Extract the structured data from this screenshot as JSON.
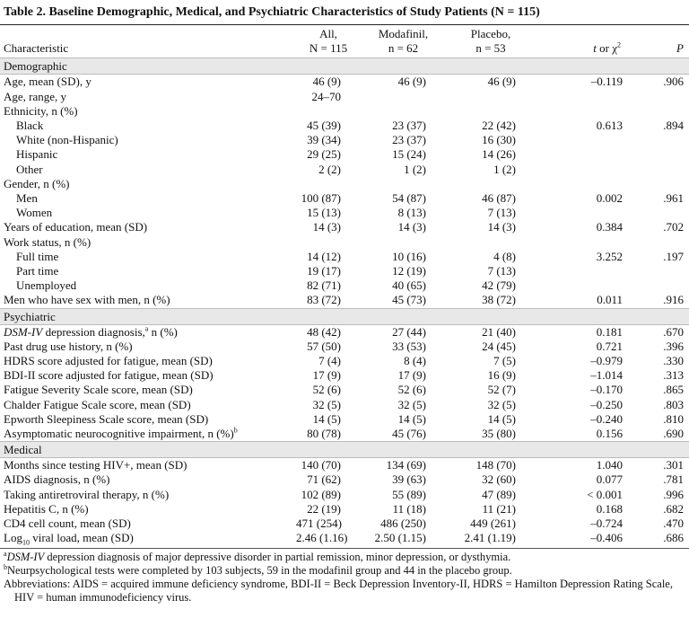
{
  "title": "Table 2. Baseline Demographic, Medical, and Psychiatric Characteristics of Study Patients (N = 115)",
  "columns": [
    [
      "Characteristic"
    ],
    [
      "All,",
      "N = 115"
    ],
    [
      "Modafinil,",
      "n = 62"
    ],
    [
      "Placebo,",
      "n = 53"
    ],
    [
      [
        {
          "text": "t",
          "style": "italic"
        },
        {
          "text": " or χ"
        },
        {
          "text": "2",
          "style": "sup"
        }
      ]
    ],
    [
      [
        {
          "text": "P",
          "style": "italic"
        }
      ]
    ]
  ],
  "sections": [
    {
      "name": "Demographic",
      "rows": [
        {
          "label": "Age, mean (SD), y",
          "cells": [
            "46 (9)",
            "46 (9)",
            "46 (9)",
            "–0.119",
            ".906"
          ]
        },
        {
          "label": "Age, range, y",
          "cells": [
            "24–70",
            null,
            null,
            null,
            null
          ]
        },
        {
          "label": "Ethnicity, n (%)",
          "subrows": [
            {
              "label": "Black",
              "cells": [
                "45 (39)",
                "23 (37)",
                "22 (42)",
                "0.613",
                ".894"
              ]
            },
            {
              "label": "White (non-Hispanic)",
              "cells": [
                "39 (34)",
                "23 (37)",
                "16 (30)",
                null,
                null
              ]
            },
            {
              "label": "Hispanic",
              "cells": [
                "29 (25)",
                "15 (24)",
                "14 (26)",
                null,
                null
              ]
            },
            {
              "label": "Other",
              "cells": [
                "2 (2)",
                "1 (2)",
                "1 (2)",
                null,
                null
              ]
            }
          ]
        },
        {
          "label": "Gender, n (%)",
          "subrows": [
            {
              "label": "Men",
              "cells": [
                "100 (87)",
                "54 (87)",
                "46 (87)",
                "0.002",
                ".961"
              ]
            },
            {
              "label": "Women",
              "cells": [
                "15 (13)",
                "8 (13)",
                "7 (13)",
                null,
                null
              ]
            }
          ]
        },
        {
          "label": "Years of education, mean (SD)",
          "cells": [
            "14 (3)",
            "14 (3)",
            "14 (3)",
            "0.384",
            ".702"
          ]
        },
        {
          "label": "Work status, n (%)",
          "subrows": [
            {
              "label": "Full time",
              "cells": [
                "14 (12)",
                "10 (16)",
                "4 (8)",
                "3.252",
                ".197"
              ]
            },
            {
              "label": "Part time",
              "cells": [
                "19 (17)",
                "12 (19)",
                "7 (13)",
                null,
                null
              ]
            },
            {
              "label": "Unemployed",
              "cells": [
                "82 (71)",
                "40 (65)",
                "42 (79)",
                null,
                null
              ]
            }
          ]
        },
        {
          "label": "Men who have sex with men, n (%)",
          "cells": [
            "83 (72)",
            "45 (73)",
            "38 (72)",
            "0.011",
            ".916"
          ]
        }
      ]
    },
    {
      "name": "Psychiatric",
      "rows": [
        {
          "label": [
            {
              "text": "DSM-IV",
              "style": "italic"
            },
            {
              "text": " depression diagnosis,"
            },
            {
              "text": "a",
              "style": "sup"
            },
            {
              "text": " n (%)"
            }
          ],
          "cells": [
            "48 (42)",
            "27 (44)",
            "21 (40)",
            "0.181",
            ".670"
          ]
        },
        {
          "label": "Past drug use history, n (%)",
          "cells": [
            "57 (50)",
            "33 (53)",
            "24 (45)",
            "0.721",
            ".396"
          ]
        },
        {
          "label": "HDRS score adjusted for fatigue, mean (SD)",
          "cells": [
            "7 (4)",
            "8 (4)",
            "7 (5)",
            "–0.979",
            ".330"
          ]
        },
        {
          "label": "BDI-II score adjusted for fatigue, mean (SD)",
          "cells": [
            "17 (9)",
            "17 (9)",
            "16 (9)",
            "–1.014",
            ".313"
          ]
        },
        {
          "label": "Fatigue Severity Scale score, mean (SD)",
          "cells": [
            "52 (6)",
            "52 (6)",
            "52 (7)",
            "–0.170",
            ".865"
          ]
        },
        {
          "label": "Chalder Fatigue Scale score, mean (SD)",
          "cells": [
            "32 (5)",
            "32 (5)",
            "32 (5)",
            "–0.250",
            ".803"
          ]
        },
        {
          "label": "Epworth Sleepiness Scale score, mean (SD)",
          "cells": [
            "14 (5)",
            "14 (5)",
            "14 (5)",
            "–0.240",
            ".810"
          ]
        },
        {
          "label": [
            {
              "text": "Asymptomatic neurocognitive impairment, n (%)"
            },
            {
              "text": "b",
              "style": "sup"
            }
          ],
          "cells": [
            "80 (78)",
            "45 (76)",
            "35 (80)",
            "0.156",
            ".690"
          ]
        }
      ]
    },
    {
      "name": "Medical",
      "rows": [
        {
          "label": "Months since testing HIV+, mean (SD)",
          "cells": [
            "140 (70)",
            "134 (69)",
            "148 (70)",
            "1.040",
            ".301"
          ]
        },
        {
          "label": "AIDS diagnosis, n (%)",
          "cells": [
            "71 (62)",
            "39 (63)",
            "32 (60)",
            "0.077",
            ".781"
          ]
        },
        {
          "label": "Taking antiretroviral therapy, n (%)",
          "cells": [
            "102 (89)",
            "55 (89)",
            "47 (89)",
            "< 0.001",
            ".996"
          ]
        },
        {
          "label": "Hepatitis C, n (%)",
          "cells": [
            "22 (19)",
            "11 (18)",
            "11 (21)",
            "0.168",
            ".682"
          ]
        },
        {
          "label": "CD4 cell count, mean (SD)",
          "cells": [
            "471 (254)",
            "486 (250)",
            "449 (261)",
            "–0.724",
            ".470"
          ]
        },
        {
          "label": [
            {
              "text": "Log"
            },
            {
              "text": "10",
              "style": "sub"
            },
            {
              "text": " viral load, mean (SD)"
            }
          ],
          "cells": [
            "2.46 (1.16)",
            "2.50 (1.15)",
            "2.41 (1.19)",
            "–0.406",
            ".686"
          ]
        }
      ]
    }
  ],
  "footnotes": [
    [
      {
        "text": "a",
        "style": "sup"
      },
      {
        "text": "DSM-IV",
        "style": "italic"
      },
      {
        "text": " depression diagnosis of major depressive disorder in partial remission, minor depression, or dysthymia."
      }
    ],
    [
      {
        "text": "b",
        "style": "sup"
      },
      {
        "text": "Neurpsychological tests were completed by 103 subjects, 59 in the modafinil group and 44 in the placebo group."
      }
    ],
    "Abbreviations: AIDS = acquired immune deficiency syndrome, BDI-II = Beck Depression Inventory-II, HDRS = Hamilton Depression Rating Scale, HIV = human immunodeficiency virus."
  ]
}
